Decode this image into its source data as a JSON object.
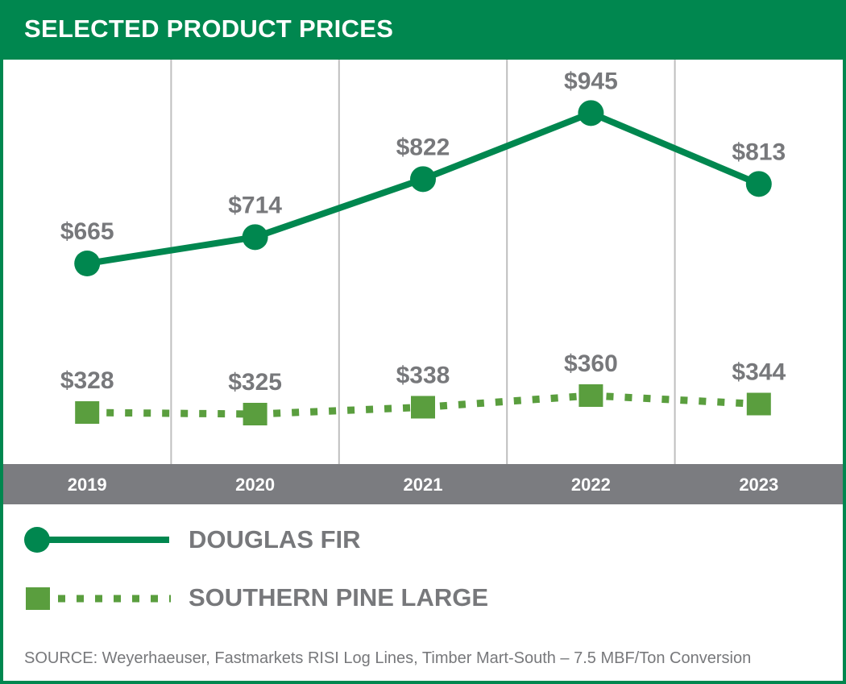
{
  "header": {
    "title": "SELECTED PRODUCT PRICES"
  },
  "colors": {
    "brand_green": "#00874f",
    "light_green": "#5a9e3e",
    "label_gray": "#77787b",
    "axis_band": "#7b7c80",
    "grid": "#bfbfbf"
  },
  "chart_data": {
    "type": "line",
    "title": "SELECTED PRODUCT PRICES",
    "categories": [
      "2019",
      "2020",
      "2021",
      "2022",
      "2023"
    ],
    "xlabel": "",
    "ylabel": "",
    "grid": "vertical",
    "legend_position": "bottom",
    "series": [
      {
        "name": "DOUGLAS FIR",
        "marker": "circle",
        "line_style": "solid",
        "color": "#00874f",
        "values": [
          665,
          714,
          822,
          945,
          813
        ],
        "labels": [
          "$665",
          "$714",
          "$822",
          "$945",
          "$813"
        ]
      },
      {
        "name": "SOUTHERN PINE LARGE",
        "marker": "square",
        "line_style": "dotted",
        "color": "#5a9e3e",
        "values": [
          328,
          325,
          338,
          360,
          344
        ],
        "labels": [
          "$328",
          "$325",
          "$338",
          "$360",
          "$344"
        ]
      }
    ]
  },
  "legend": {
    "douglas_fir": "DOUGLAS FIR",
    "southern_pine": "SOUTHERN PINE LARGE"
  },
  "footer": {
    "source": "SOURCE: Weyerhaeuser, Fastmarkets RISI Log Lines, Timber Mart-South – 7.5 MBF/Ton Conversion"
  }
}
